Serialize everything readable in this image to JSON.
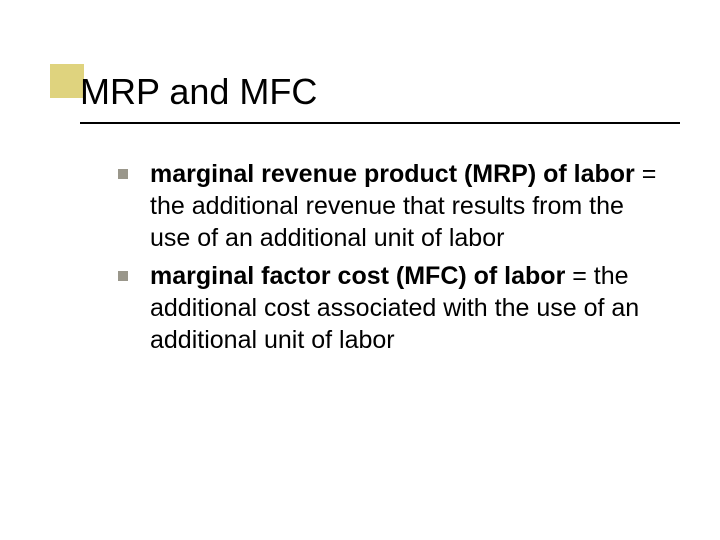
{
  "slide": {
    "title": "MRP and MFC",
    "accent_color": "#dfd37e",
    "rule_color": "#000000",
    "bullet_color": "#9a978b",
    "background_color": "#ffffff",
    "title_fontsize": 36,
    "body_fontsize": 25,
    "bullets": [
      {
        "bold": "marginal revenue product (MRP) of labor",
        "rest": " = the additional revenue that results from the use of an additional unit of labor"
      },
      {
        "bold": "marginal factor cost (MFC) of labor",
        "rest": " = the additional cost associated with the use of an additional unit of labor"
      }
    ]
  }
}
